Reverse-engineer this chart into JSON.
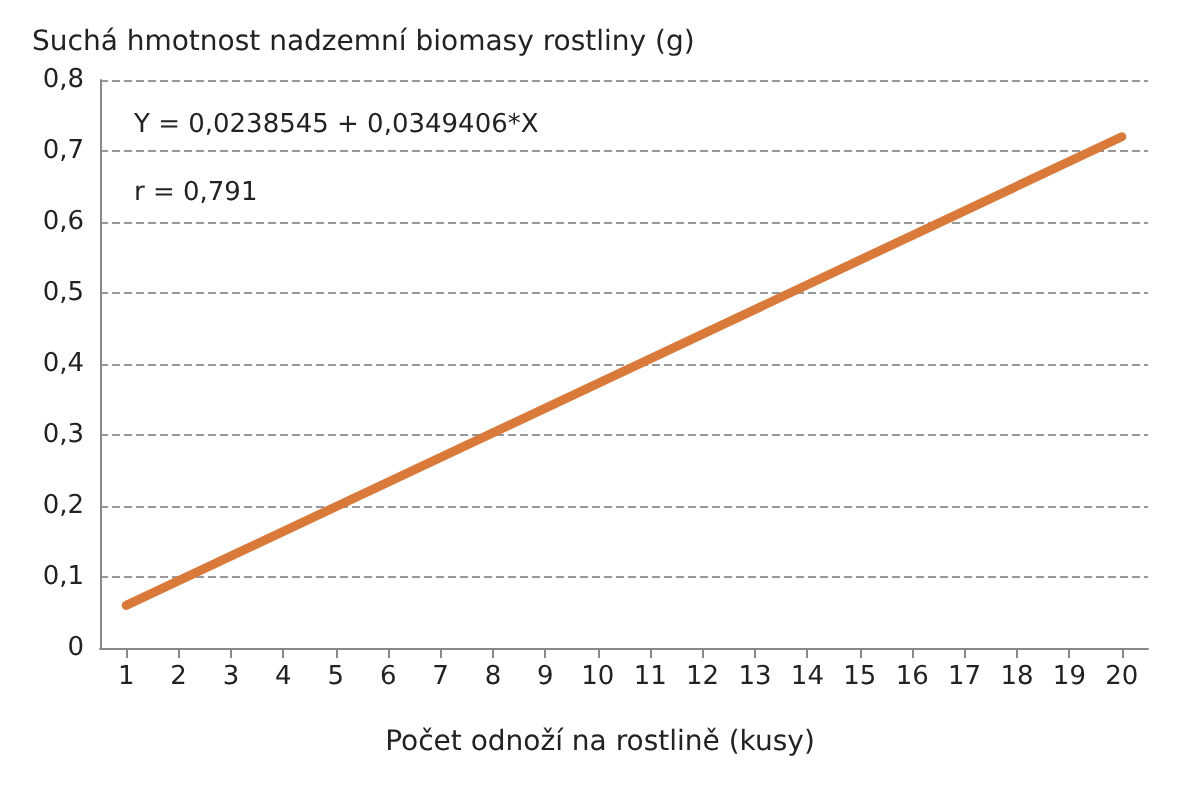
{
  "chart_data": {
    "type": "line",
    "ylabel": "Suchá hmotnost nadzemní biomasy rostliny (g)",
    "xlabel": "Počet odnoží na rostlině (kusy)",
    "annotations": [
      "Y = 0,0238545 + 0,0349406*X",
      "r = 0,791"
    ],
    "x": [
      1,
      20
    ],
    "series": [
      {
        "color": "#d97a3a",
        "values": [
          0.06,
          0.72
        ]
      }
    ],
    "xlim": [
      0.5,
      20.5
    ],
    "xticks": [
      1,
      2,
      3,
      4,
      5,
      6,
      7,
      8,
      9,
      10,
      11,
      12,
      13,
      14,
      15,
      16,
      17,
      18,
      19,
      20
    ],
    "ylim": [
      0,
      0.8
    ],
    "yticks": [
      0,
      {
        "value": 0.1,
        "label": "0,1"
      },
      {
        "value": 0.2,
        "label": "0,2"
      },
      {
        "value": 0.3,
        "label": "0,3"
      },
      {
        "value": 0.4,
        "label": "0,4"
      },
      {
        "value": 0.5,
        "label": "0,5"
      },
      {
        "value": 0.6,
        "label": "0,6"
      },
      {
        "value": 0.7,
        "label": "0,7"
      },
      {
        "value": 0.8,
        "label": "0,8"
      }
    ],
    "grid": "y",
    "marker": "none",
    "line_style": "solid"
  }
}
